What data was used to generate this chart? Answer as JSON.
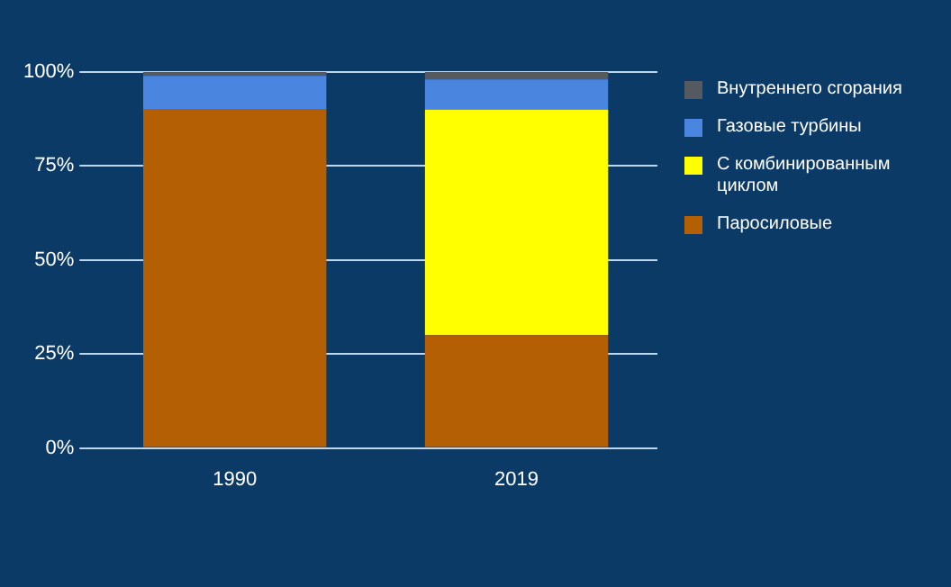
{
  "chart_data": {
    "type": "bar",
    "stacked": true,
    "categories": [
      "1990",
      "2019"
    ],
    "series": [
      {
        "name": "Паросиловые",
        "color": "#b55f05",
        "values": [
          90,
          30
        ]
      },
      {
        "name": "С комбинированным циклом",
        "color": "#ffff00",
        "values": [
          0,
          60
        ]
      },
      {
        "name": "Газовые турбины",
        "color": "#4a86e0",
        "values": [
          9,
          8
        ]
      },
      {
        "name": "Внутреннего сгорания",
        "color": "#555a60",
        "values": [
          1,
          2
        ]
      }
    ],
    "ylim": [
      0,
      100
    ],
    "yticks": [
      {
        "value": 0,
        "label": "0%"
      },
      {
        "value": 25,
        "label": "25%"
      },
      {
        "value": 50,
        "label": "50%"
      },
      {
        "value": 75,
        "label": "75%"
      },
      {
        "value": 100,
        "label": "100%"
      }
    ],
    "grid": "y",
    "legend": "right"
  }
}
